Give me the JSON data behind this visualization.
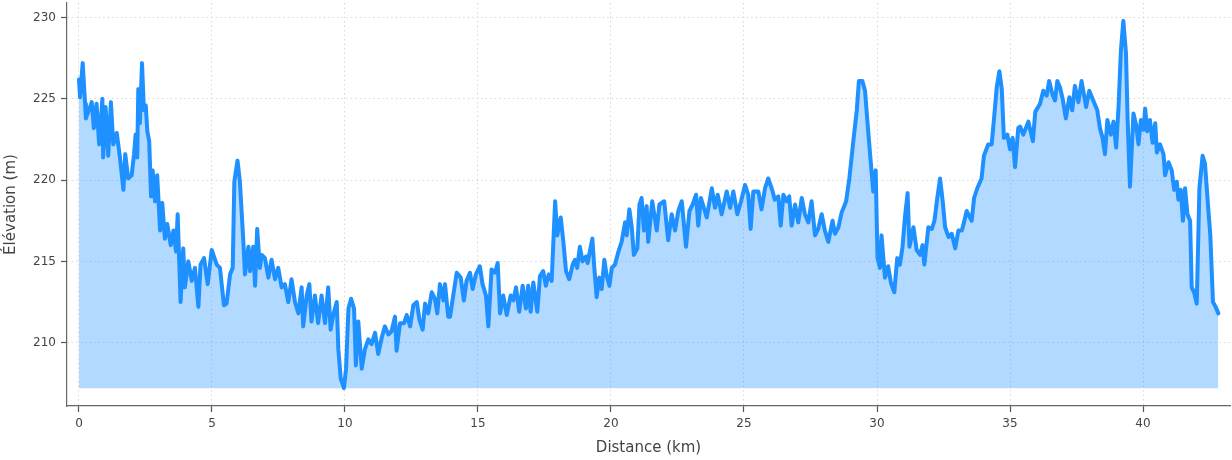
{
  "chart_data": {
    "type": "area",
    "xlabel": "Distance (km)",
    "ylabel": "Élévation (m)",
    "xlim": [
      -0.45,
      43.27
    ],
    "ylim": [
      206.1,
      230.9
    ],
    "xticks": [
      0,
      5,
      10,
      15,
      20,
      25,
      30,
      35,
      40
    ],
    "yticks": [
      210,
      215,
      220,
      225,
      230
    ],
    "grid": true,
    "x": [
      0,
      0.04,
      0.14,
      0.23,
      0.26,
      0.48,
      0.56,
      0.66,
      0.76,
      0.88,
      0.91,
      1.0,
      1.1,
      1.2,
      1.29,
      1.42,
      1.54,
      1.67,
      1.74,
      1.85,
      1.98,
      2.07,
      2.13,
      2.19,
      2.23,
      2.29,
      2.37,
      2.44,
      2.51,
      2.57,
      2.64,
      2.71,
      2.77,
      2.86,
      2.94,
      3.05,
      3.13,
      3.23,
      3.32,
      3.45,
      3.55,
      3.65,
      3.71,
      3.82,
      3.92,
      3.98,
      4.11,
      4.24,
      4.36,
      4.49,
      4.57,
      4.7,
      4.84,
      4.99,
      5.18,
      5.3,
      5.45,
      5.55,
      5.68,
      5.78,
      5.84,
      5.96,
      6.05,
      6.18,
      6.24,
      6.37,
      6.43,
      6.55,
      6.62,
      6.7,
      6.8,
      6.87,
      6.99,
      7.12,
      7.24,
      7.37,
      7.49,
      7.62,
      7.74,
      7.87,
      7.99,
      8.12,
      8.25,
      8.37,
      8.43,
      8.56,
      8.66,
      8.74,
      8.87,
      8.99,
      9.12,
      9.25,
      9.37,
      9.46,
      9.56,
      9.69,
      9.75,
      9.84,
      9.96,
      10.04,
      10.13,
      10.23,
      10.34,
      10.41,
      10.5,
      10.63,
      10.75,
      10.88,
      11.0,
      11.13,
      11.25,
      11.38,
      11.5,
      11.63,
      11.75,
      11.88,
      11.94,
      12.07,
      12.22,
      12.32,
      12.45,
      12.57,
      12.7,
      12.8,
      12.92,
      13.01,
      13.13,
      13.26,
      13.38,
      13.47,
      13.57,
      13.7,
      13.76,
      13.88,
      13.95,
      14.07,
      14.2,
      14.35,
      14.47,
      14.57,
      14.7,
      14.8,
      14.92,
      15.07,
      15.17,
      15.3,
      15.39,
      15.51,
      15.64,
      15.74,
      15.83,
      15.95,
      16.08,
      16.23,
      16.33,
      16.43,
      16.55,
      16.68,
      16.8,
      16.89,
      16.98,
      17.08,
      17.23,
      17.33,
      17.45,
      17.55,
      17.66,
      17.77,
      17.9,
      17.98,
      18.11,
      18.21,
      18.31,
      18.43,
      18.56,
      18.65,
      18.73,
      18.83,
      18.93,
      19.06,
      19.12,
      19.3,
      19.36,
      19.46,
      19.56,
      19.65,
      19.75,
      19.84,
      19.94,
      20.03,
      20.15,
      20.28,
      20.4,
      20.53,
      20.59,
      20.69,
      20.78,
      20.86,
      20.99,
      21.07,
      21.15,
      21.24,
      21.34,
      21.4,
      21.55,
      21.72,
      21.82,
      22.0,
      22.15,
      22.28,
      22.41,
      22.53,
      22.66,
      22.82,
      22.95,
      23.07,
      23.2,
      23.28,
      23.38,
      23.6,
      23.79,
      23.91,
      24.01,
      24.16,
      24.35,
      24.48,
      24.6,
      24.75,
      24.89,
      25.04,
      25.16,
      25.25,
      25.35,
      25.54,
      25.66,
      25.79,
      25.91,
      26.04,
      26.16,
      26.29,
      26.38,
      26.48,
      26.6,
      26.7,
      26.79,
      26.92,
      27.04,
      27.17,
      27.29,
      27.42,
      27.54,
      27.67,
      27.79,
      27.92,
      28.04,
      28.17,
      28.33,
      28.42,
      28.55,
      28.67,
      28.84,
      28.96,
      29.11,
      29.24,
      29.32,
      29.45,
      29.55,
      29.64,
      29.76,
      29.86,
      29.95,
      30.02,
      30.11,
      30.17,
      30.3,
      30.42,
      30.52,
      30.65,
      30.76,
      30.86,
      30.96,
      31.05,
      31.15,
      31.22,
      31.37,
      31.49,
      31.62,
      31.71,
      31.78,
      31.93,
      32.06,
      32.16,
      32.25,
      32.37,
      32.47,
      32.56,
      32.69,
      32.81,
      32.94,
      33.06,
      33.19,
      33.27,
      33.37,
      33.56,
      33.65,
      33.77,
      33.93,
      34.02,
      34.18,
      34.31,
      34.4,
      34.5,
      34.6,
      34.69,
      34.77,
      34.9,
      35.0,
      35.1,
      35.19,
      35.31,
      35.38,
      35.5,
      35.69,
      35.86,
      35.95,
      36.13,
      36.25,
      36.38,
      36.47,
      36.59,
      36.69,
      36.78,
      36.88,
      36.98,
      37.1,
      37.23,
      37.34,
      37.44,
      37.57,
      37.69,
      37.86,
      37.98,
      38.13,
      38.28,
      38.38,
      38.48,
      38.57,
      38.66,
      38.79,
      38.89,
      38.99,
      39.08,
      39.17,
      39.26,
      39.36,
      39.42,
      39.51,
      39.64,
      39.74,
      39.83,
      39.92,
      40.02,
      40.08,
      40.16,
      40.26,
      40.36,
      40.46,
      40.52,
      40.64,
      40.77,
      40.83,
      40.96,
      41.08,
      41.17,
      41.27,
      41.33,
      41.42,
      41.5,
      41.58,
      41.67,
      41.77,
      41.83,
      41.92,
      42.02,
      42.12,
      42.24,
      42.33,
      42.45,
      42.53,
      42.63,
      42.73,
      42.83
    ],
    "series": [
      {
        "color": "#1e90ff",
        "values": [
          226.2,
          225.1,
          227.2,
          224.7,
          223.8,
          224.8,
          223.2,
          224.7,
          222.2,
          225.0,
          221.4,
          224.5,
          221.5,
          224.8,
          222.2,
          222.9,
          221.4,
          219.4,
          221.6,
          220.1,
          220.3,
          221.6,
          222.8,
          221.4,
          225.6,
          223.5,
          227.2,
          224.3,
          224.6,
          223.0,
          222.4,
          219.0,
          220.6,
          218.7,
          220.3,
          216.9,
          218.6,
          216.4,
          217.3,
          216.0,
          216.9,
          215.6,
          217.9,
          212.5,
          215.8,
          213.4,
          215.0,
          213.8,
          214.6,
          212.2,
          214.8,
          215.2,
          213.6,
          215.7,
          214.8,
          214.6,
          212.3,
          212.4,
          214.2,
          214.6,
          219.9,
          221.2,
          219.9,
          216.2,
          214.2,
          215.9,
          214.4,
          215.9,
          213.5,
          217.0,
          214.6,
          215.4,
          215.2,
          214.0,
          215.1,
          213.9,
          214.6,
          213.4,
          213.6,
          212.5,
          213.9,
          212.5,
          211.8,
          213.4,
          211.0,
          212.9,
          213.6,
          211.3,
          212.9,
          211.2,
          212.9,
          211.2,
          213.4,
          210.8,
          211.7,
          212.5,
          209.6,
          207.8,
          207.2,
          208.4,
          212.1,
          212.7,
          212.1,
          208.6,
          211.3,
          208.4,
          209.6,
          210.2,
          209.9,
          210.6,
          209.3,
          210.3,
          211.0,
          210.5,
          210.7,
          211.6,
          209.5,
          211.2,
          211.2,
          211.7,
          211.0,
          212.3,
          212.5,
          211.4,
          210.8,
          212.4,
          211.8,
          213.1,
          212.7,
          211.8,
          213.6,
          212.6,
          213.6,
          211.6,
          211.6,
          212.9,
          214.3,
          214.0,
          212.6,
          213.8,
          214.3,
          213.3,
          214.2,
          214.7,
          213.6,
          212.9,
          211.0,
          214.5,
          214.3,
          214.9,
          211.8,
          212.9,
          211.7,
          212.9,
          212.6,
          213.4,
          211.9,
          213.5,
          212.1,
          213.5,
          211.9,
          213.7,
          211.9,
          214.1,
          214.4,
          213.5,
          214.2,
          213.8,
          218.7,
          216.6,
          217.7,
          216.2,
          214.4,
          213.9,
          214.8,
          215.1,
          214.6,
          215.9,
          215.0,
          215.3,
          214.9,
          216.4,
          214.9,
          212.8,
          214.0,
          213.3,
          215.1,
          214.1,
          213.5,
          214.6,
          214.8,
          215.6,
          216.2,
          217.4,
          216.6,
          218.2,
          217.1,
          215.4,
          215.8,
          218.5,
          218.9,
          216.9,
          218.4,
          216.2,
          218.7,
          216.9,
          218.5,
          218.7,
          216.3,
          217.9,
          216.9,
          218.1,
          218.7,
          215.9,
          218.1,
          218.5,
          219.1,
          217.2,
          218.9,
          217.7,
          219.5,
          218.3,
          219.1,
          217.9,
          219.3,
          218.3,
          219.3,
          217.9,
          218.7,
          219.7,
          219.1,
          217.0,
          219.3,
          219.3,
          218.2,
          219.5,
          220.1,
          219.5,
          218.8,
          219.0,
          217.2,
          219.1,
          218.7,
          219.0,
          217.2,
          218.5,
          217.4,
          218.9,
          217.9,
          217.4,
          218.7,
          216.6,
          217.0,
          217.9,
          216.9,
          216.2,
          217.5,
          216.7,
          217.1,
          218.0,
          218.7,
          220.1,
          222.4,
          224.3,
          226.1,
          226.1,
          225.5,
          223.6,
          221.2,
          219.3,
          220.6,
          215.2,
          214.6,
          216.6,
          214.0,
          214.7,
          213.7,
          213.1,
          215.2,
          214.8,
          215.9,
          217.7,
          219.2,
          215.9,
          217.1,
          215.7,
          215.4,
          216.0,
          214.8,
          217.1,
          217.0,
          217.5,
          218.7,
          220.1,
          218.7,
          217.1,
          216.5,
          216.7,
          215.8,
          216.9,
          216.9,
          217.4,
          218.1,
          217.5,
          218.9,
          219.5,
          220.1,
          221.5,
          222.2,
          222.2,
          223.8,
          225.7,
          226.7,
          225.6,
          222.6,
          222.8,
          221.9,
          222.6,
          220.8,
          223.2,
          223.3,
          222.8,
          223.6,
          222.4,
          224.2,
          224.7,
          225.5,
          225.2,
          226.1,
          225.3,
          224.9,
          226.1,
          225.7,
          225.0,
          223.8,
          225.1,
          224.3,
          225.8,
          224.8,
          226.1,
          224.5,
          225.5,
          224.9,
          224.3,
          223.2,
          222.6,
          221.6,
          223.7,
          222.8,
          223.6,
          222.0,
          224.5,
          228.0,
          229.8,
          227.8,
          223.8,
          219.6,
          224.1,
          223.4,
          222.2,
          223.7,
          223.1,
          224.4,
          223.0,
          223.7,
          222.3,
          223.5,
          221.7,
          222.2,
          221.6,
          220.3,
          221.1,
          220.6,
          219.4,
          219.9,
          218.8,
          219.4,
          217.5,
          219.5,
          217.9,
          217.5,
          213.4,
          213.1,
          212.4,
          219.5,
          221.5,
          221.0,
          218.3,
          216.6,
          212.5,
          212.2,
          211.8
        ]
      }
    ]
  }
}
